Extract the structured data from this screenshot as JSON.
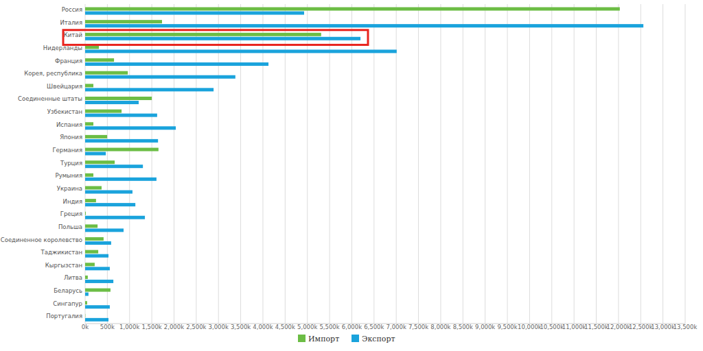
{
  "chart_data": {
    "type": "bar",
    "orientation": "horizontal",
    "grid": true,
    "legend": "bottom",
    "categories": [
      "Россия",
      "Италия",
      "Китай",
      "Нидерланды",
      "Франция",
      "Корея, республика",
      "Швейцария",
      "Соединенные штаты",
      "Узбекистан",
      "Испания",
      "Япония",
      "Германия",
      "Турция",
      "Румыния",
      "Украина",
      "Индия",
      "Греция",
      "Польша",
      "Соединенное королевство",
      "Таджикистан",
      "Кыргызстан",
      "Литва",
      "Беларусь",
      "Сингапур",
      "Португалия"
    ],
    "series": [
      {
        "name": "Импорт",
        "color": "#6cbd45",
        "values": [
          12030,
          1730,
          5310,
          310,
          650,
          960,
          185,
          1500,
          820,
          185,
          495,
          1650,
          665,
          185,
          370,
          245,
          15,
          280,
          415,
          295,
          215,
          60,
          570,
          45,
          5
        ]
      },
      {
        "name": "Экспорт",
        "color": "#1aa3dc",
        "values": [
          4927,
          12560,
          6195,
          7010,
          4125,
          3380,
          2890,
          1205,
          1620,
          2040,
          1640,
          465,
          1300,
          1605,
          1065,
          1130,
          1345,
          865,
          585,
          525,
          555,
          635,
          75,
          555,
          525
        ]
      }
    ],
    "xlim": [
      0,
      13500
    ],
    "xticks": [
      {
        "value": 0,
        "label": "0k"
      },
      {
        "value": 500,
        "label": "500k"
      },
      {
        "value": 1000,
        "label": "1,000k"
      },
      {
        "value": 1500,
        "label": "1,500k"
      },
      {
        "value": 2000,
        "label": "2,000k"
      },
      {
        "value": 2500,
        "label": "2,500k"
      },
      {
        "value": 3000,
        "label": "3,000k"
      },
      {
        "value": 3500,
        "label": "3,500k"
      },
      {
        "value": 4000,
        "label": "4,000k"
      },
      {
        "value": 4500,
        "label": "4,500k"
      },
      {
        "value": 5000,
        "label": "5,000k"
      },
      {
        "value": 5500,
        "label": "5,500k"
      },
      {
        "value": 6000,
        "label": "6,000k"
      },
      {
        "value": 6500,
        "label": "6,500k"
      },
      {
        "value": 7000,
        "label": "7,000k"
      },
      {
        "value": 7500,
        "label": "7,500k"
      },
      {
        "value": 8000,
        "label": "8,000k"
      },
      {
        "value": 8500,
        "label": "8,500k"
      },
      {
        "value": 9000,
        "label": "9,000k"
      },
      {
        "value": 9500,
        "label": "9,500k"
      },
      {
        "value": 10000,
        "label": "10,000k"
      },
      {
        "value": 10500,
        "label": "10,500k"
      },
      {
        "value": 11000,
        "label": "11,000k"
      },
      {
        "value": 11500,
        "label": "11,500k"
      },
      {
        "value": 12000,
        "label": "12,000k"
      },
      {
        "value": 12500,
        "label": "12,500k"
      },
      {
        "value": 13000,
        "label": "13,000k"
      },
      {
        "value": 13500,
        "label": "13,500k"
      }
    ]
  }
}
